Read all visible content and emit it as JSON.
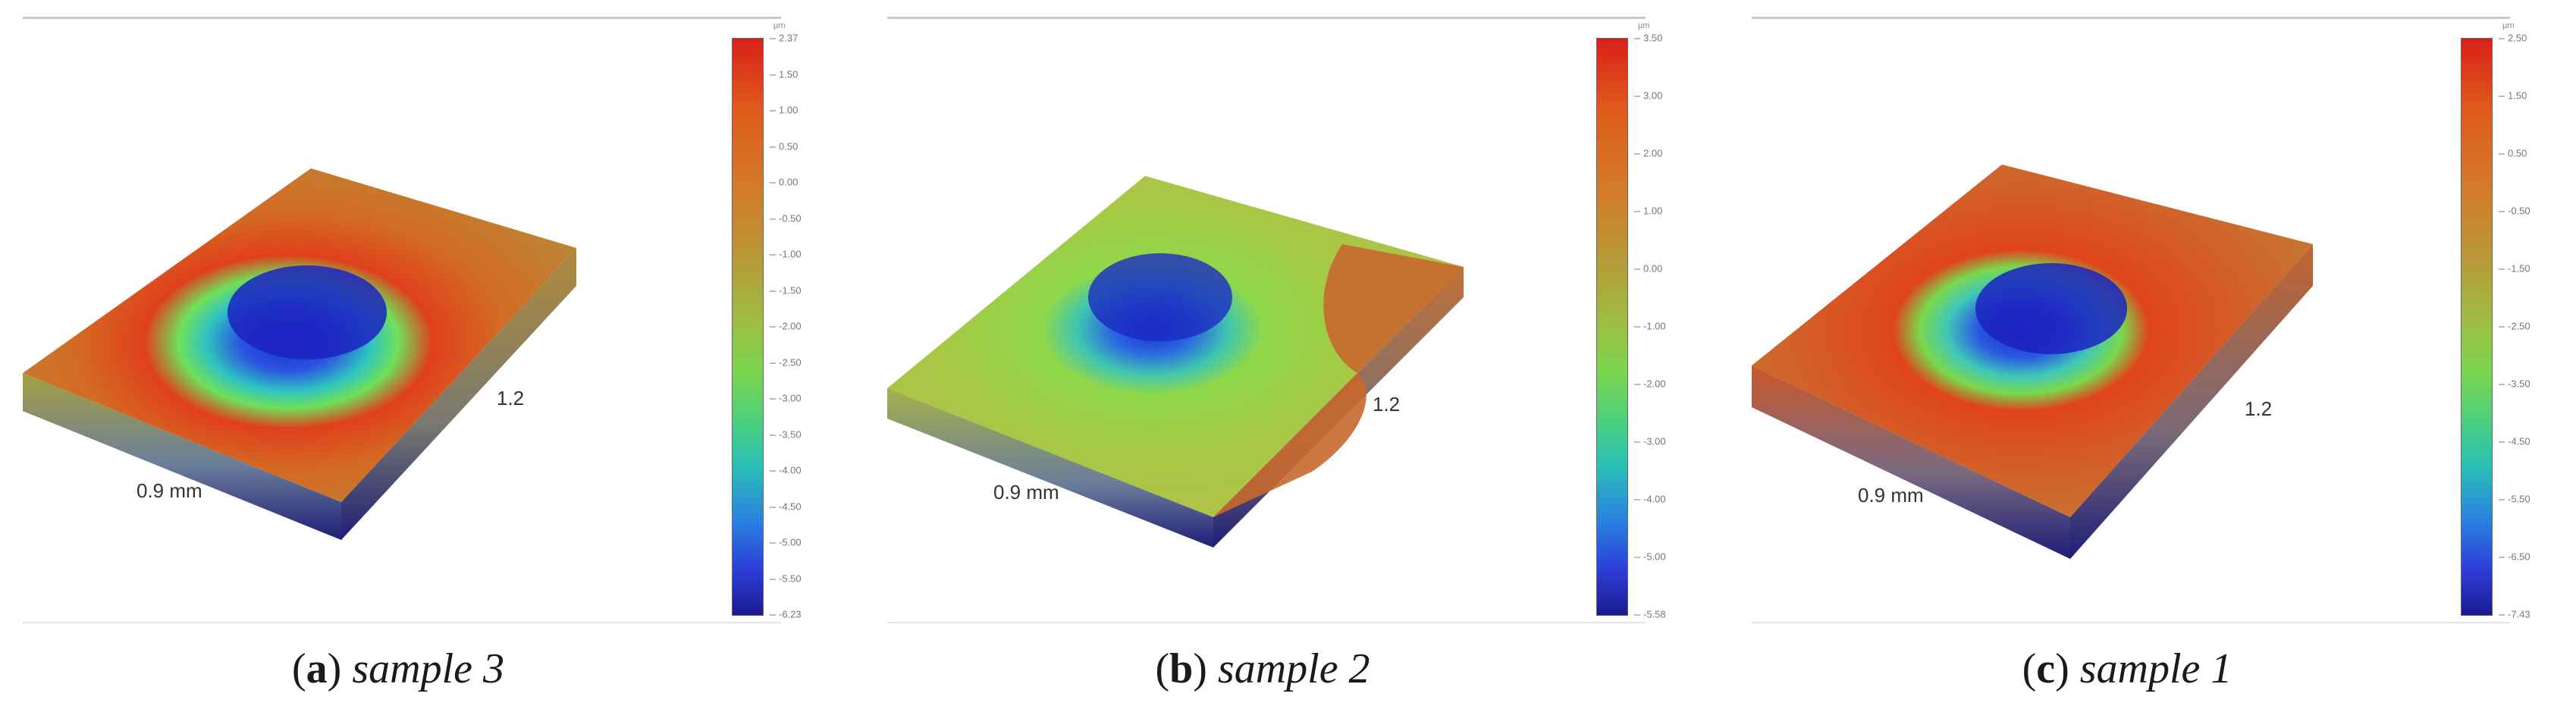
{
  "panels": [
    {
      "letter": "a",
      "caption_text": "sample 3",
      "dim_x": "0.9 mm",
      "dim_y": "1.2",
      "colorbar_unit": "µm",
      "ticks": [
        "2.37",
        "1.50",
        "1.00",
        "0.50",
        "0.00",
        "-0.50",
        "-1.00",
        "-1.50",
        "-2.00",
        "-2.50",
        "-3.00",
        "-3.50",
        "-4.00",
        "-4.50",
        "-5.00",
        "-5.50",
        "-6.23"
      ]
    },
    {
      "letter": "b",
      "caption_text": "sample 2",
      "dim_x": "0.9 mm",
      "dim_y": "1.2",
      "colorbar_unit": "µm",
      "ticks": [
        "3.50",
        "3.00",
        "2.00",
        "1.00",
        "0.00",
        "-1.00",
        "-2.00",
        "-3.00",
        "-4.00",
        "-5.00",
        "-5.58"
      ]
    },
    {
      "letter": "c",
      "caption_text": "sample 1",
      "dim_x": "0.9 mm",
      "dim_y": "1.2",
      "colorbar_unit": "µm",
      "ticks": [
        "2.50",
        "1.50",
        "0.50",
        "-0.50",
        "-1.50",
        "-2.50",
        "-3.50",
        "-4.50",
        "-5.50",
        "-6.50",
        "-7.43"
      ]
    }
  ],
  "colors": {
    "colorbar_top": "#d91f1a",
    "colorbar_mid": "#9cc043",
    "colorbar_bottom": "#1a1a90"
  }
}
